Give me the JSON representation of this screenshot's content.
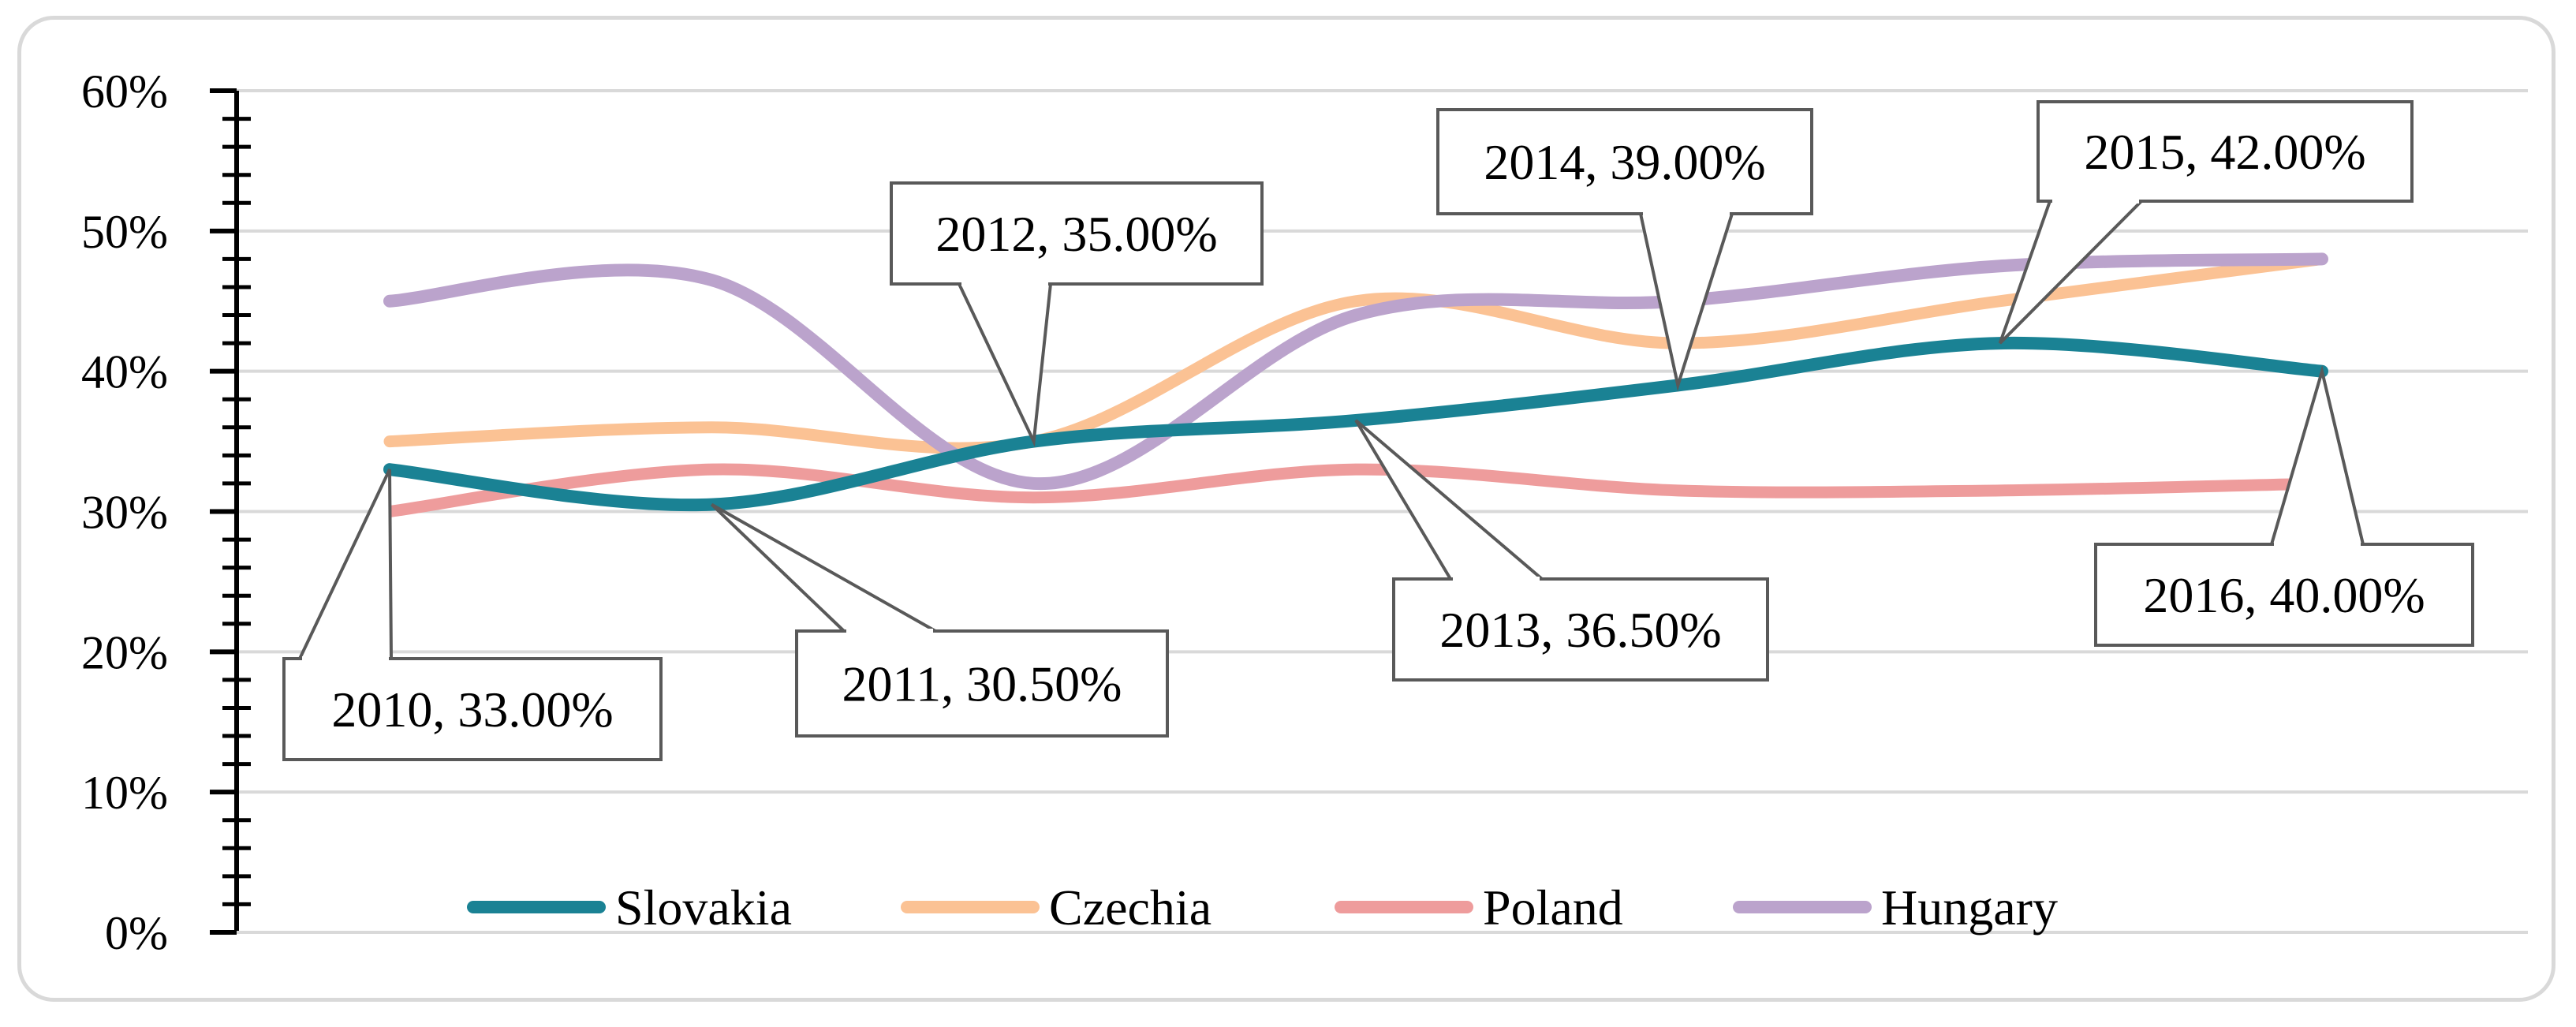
{
  "chart_data": {
    "type": "line",
    "title": "",
    "xlabel": "",
    "ylabel": "",
    "categories": [
      "2010",
      "2011",
      "2012",
      "2013",
      "2014",
      "2015",
      "2016"
    ],
    "ylim": [
      0,
      0.6
    ],
    "yticks": [
      "0%",
      "10%",
      "20%",
      "30%",
      "40%",
      "50%",
      "60%"
    ],
    "grid": true,
    "legend_position": "bottom",
    "series": [
      {
        "name": "Slovakia",
        "color": "#1a8294",
        "values": [
          0.33,
          0.305,
          0.35,
          0.365,
          0.39,
          0.42,
          0.4
        ]
      },
      {
        "name": "Czechia",
        "color": "#fbc294",
        "values": [
          0.35,
          0.36,
          0.35,
          0.45,
          0.42,
          0.45,
          0.48
        ]
      },
      {
        "name": "Poland",
        "color": "#ee9c9c",
        "values": [
          0.3,
          0.33,
          0.31,
          0.33,
          0.315,
          0.315,
          0.32
        ]
      },
      {
        "name": "Hungary",
        "color": "#bba3cc",
        "values": [
          0.45,
          0.465,
          0.32,
          0.44,
          0.45,
          0.475,
          0.48
        ]
      }
    ],
    "annotations": [
      {
        "series": "Slovakia",
        "category": "2010",
        "text": "2010, 33.00%"
      },
      {
        "series": "Slovakia",
        "category": "2011",
        "text": "2011, 30.50%"
      },
      {
        "series": "Slovakia",
        "category": "2012",
        "text": "2012, 35.00%"
      },
      {
        "series": "Slovakia",
        "category": "2013",
        "text": "2013, 36.50%"
      },
      {
        "series": "Slovakia",
        "category": "2014",
        "text": "2014, 39.00%"
      },
      {
        "series": "Slovakia",
        "category": "2015",
        "text": "2015, 42.00%"
      },
      {
        "series": "Slovakia",
        "category": "2016",
        "text": "2016, 40.00%"
      }
    ]
  }
}
